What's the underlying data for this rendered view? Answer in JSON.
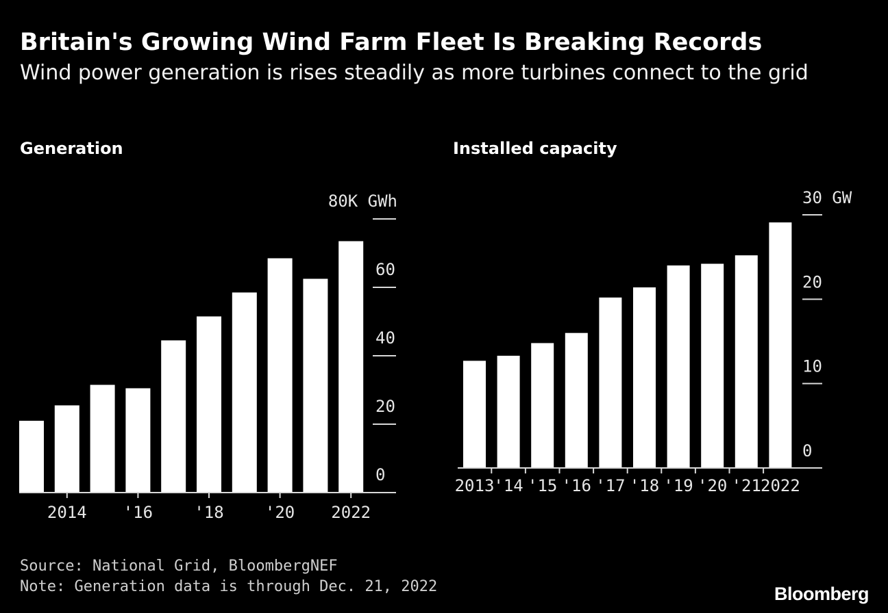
{
  "header": {
    "title": "Britain's Growing Wind Farm Fleet Is Breaking Records",
    "subtitle": "Wind power generation is rises steadily as more turbines connect to the grid"
  },
  "footer": {
    "source": "Source: National Grid, BloombergNEF",
    "note": "Note: Generation data is through Dec. 21, 2022",
    "brand": "Bloomberg"
  },
  "colors": {
    "background": "#000000",
    "bar": "#ffffff",
    "text": "#ffffff"
  },
  "chart_data": [
    {
      "type": "bar",
      "title": "Generation",
      "unit_label": "80K GWh",
      "categories": [
        "2013",
        "2014",
        "2015",
        "2016",
        "2017",
        "2018",
        "2019",
        "2020",
        "2021",
        "2022"
      ],
      "values": [
        21,
        25.5,
        31.5,
        30.5,
        44.5,
        51.5,
        58.5,
        68.5,
        62.5,
        73.5
      ],
      "ylim": [
        0,
        80
      ],
      "yticks": [
        0,
        20,
        40,
        60,
        80
      ],
      "ytick_labels": [
        "0",
        "20",
        "40",
        "60",
        "80K GWh"
      ],
      "xtick_labels": [
        "2014",
        "'16",
        "'18",
        "'20",
        "2022"
      ],
      "xtick_categories": [
        "2014",
        "2016",
        "2018",
        "2020",
        "2022"
      ],
      "xlabel": "",
      "ylabel": ""
    },
    {
      "type": "bar",
      "title": "Installed capacity",
      "unit_label": "30 GW",
      "categories": [
        "2013",
        "'14",
        "'15",
        "'16",
        "'17",
        "'18",
        "'19",
        "'20",
        "'21",
        "2022"
      ],
      "values": [
        12.7,
        13.3,
        14.8,
        16,
        20.2,
        21.4,
        24,
        24.2,
        25.2,
        29.1
      ],
      "ylim": [
        0,
        30
      ],
      "yticks": [
        0,
        10,
        20,
        30
      ],
      "ytick_labels": [
        "0",
        "10",
        "20",
        "30 GW"
      ],
      "xlabel": "",
      "ylabel": ""
    }
  ]
}
